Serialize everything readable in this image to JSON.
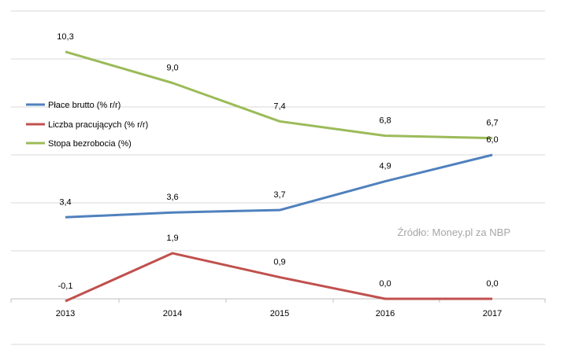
{
  "chart_data": {
    "type": "line",
    "title": "",
    "xlabel": "",
    "ylabel": "",
    "categories": [
      "2013",
      "2014",
      "2015",
      "2016",
      "2017"
    ],
    "ylim": [
      -0.1,
      12.0
    ],
    "grid": true,
    "legend_position": "left",
    "series": [
      {
        "name": "Płace brutto (% r/r)",
        "color": "#4f81bd",
        "values": [
          3.4,
          3.6,
          3.7,
          4.9,
          6.0
        ],
        "labels": [
          "3,4",
          "3,6",
          "3,7",
          "4,9",
          "6,0"
        ]
      },
      {
        "name": "Liczba pracujących (% r/r)",
        "color": "#c0504d",
        "values": [
          -0.1,
          1.9,
          0.9,
          0.0,
          0.0
        ],
        "labels": [
          "-0,1",
          "1,9",
          "0,9",
          "0,0",
          "0,0"
        ]
      },
      {
        "name": "Stopa bezrobocia (%)",
        "color": "#9bbb59",
        "values": [
          10.3,
          9.0,
          7.4,
          6.8,
          6.7
        ],
        "labels": [
          "10,3",
          "9,0",
          "7,4",
          "6,8",
          "6,7"
        ]
      }
    ],
    "source_note": "Źródło: Money.pl za NBP"
  }
}
